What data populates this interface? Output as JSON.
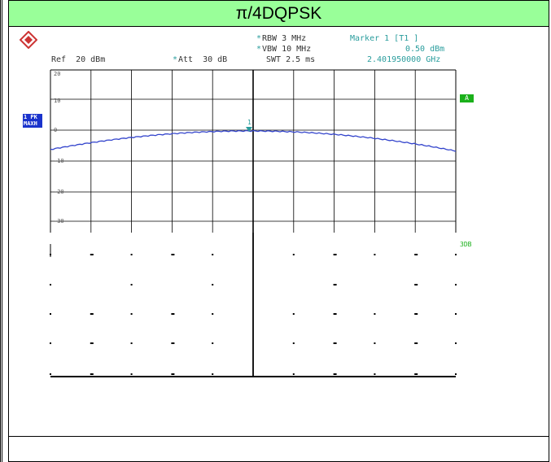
{
  "header": {
    "title": "π/4DQPSK"
  },
  "analyzer": {
    "rbw": "RBW 3 MHz",
    "vbw": "VBW 10 MHz",
    "swt": "SWT 2.5 ms",
    "marker_title": "Marker 1 [T1 ]",
    "marker_level": "0.50 dBm",
    "marker_freq": "2.401950000 GHz",
    "ref_level": "Ref  20 dBm",
    "attenuation": "Att  30 dB",
    "trace_label_line1": "1 PK",
    "trace_label_line2": "MAXH",
    "a_tag": "A",
    "three_db": "3DB",
    "marker_number": "1",
    "y_ticks": [
      "20",
      "10",
      "0",
      "-10",
      "-20",
      "-30"
    ]
  },
  "colors": {
    "header_bg": "#99ff99",
    "trace": "#3344cc",
    "marker": "#2a9d9d",
    "trace_label_bg": "#1a33cc",
    "a_tag_bg": "#1ab01a"
  },
  "icons": {
    "logo": "rohde-schwarz-logo-icon"
  }
}
